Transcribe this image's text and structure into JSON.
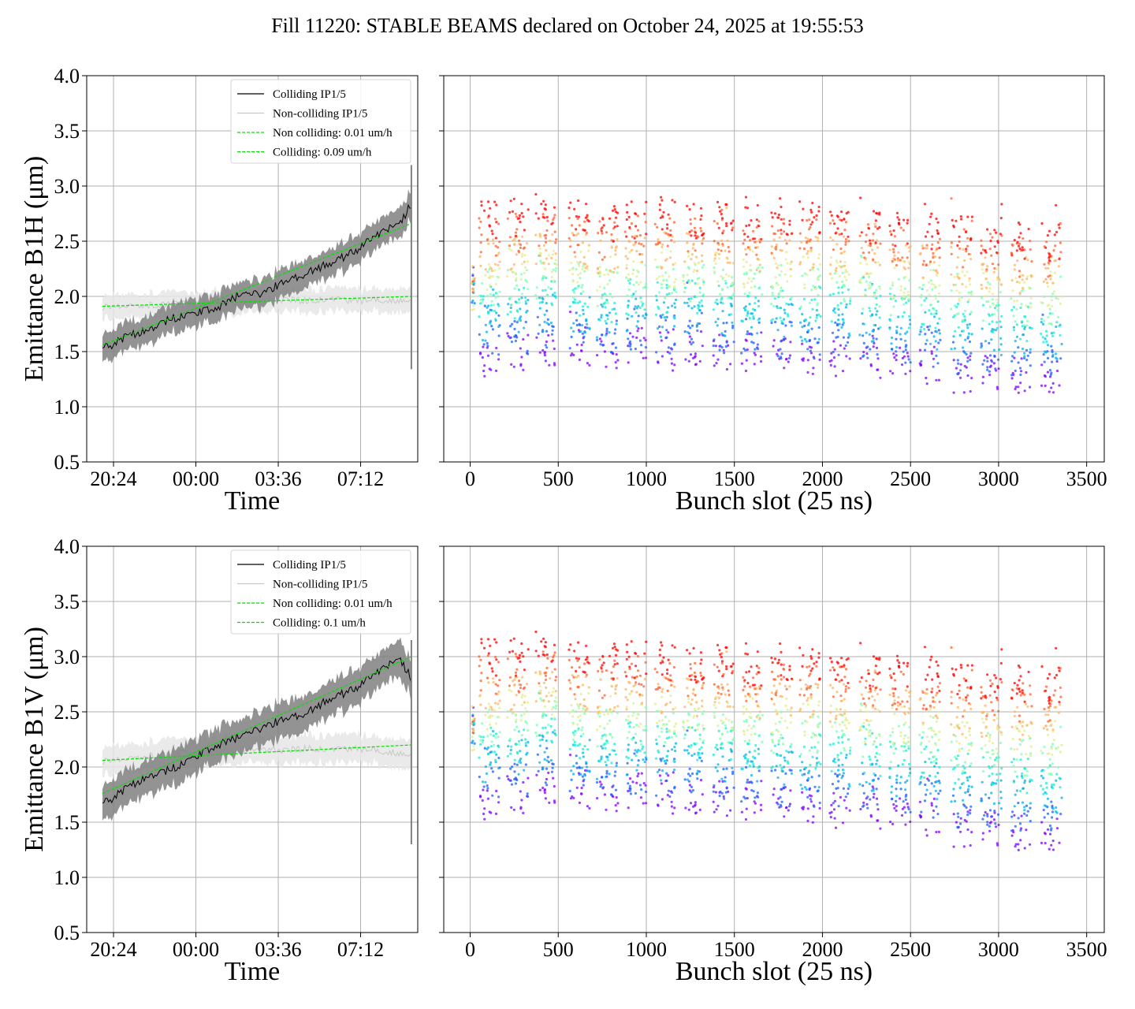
{
  "title": "Fill 11220: STABLE BEAMS declared on October 24, 2025 at 19:55:53",
  "colors": {
    "colliding": "#000000",
    "colliding_band": "#808080",
    "noncolliding": "#c8c8c8",
    "noncolliding_band": "#e6e6e6",
    "fit": "#00e000",
    "grid": "#b0b0b0"
  },
  "chart_data": [
    {
      "id": "b1h-time",
      "type": "line",
      "xlabel": "Time",
      "ylabel": "Emittance B1H (μm)",
      "ylim": [
        0.5,
        4.0
      ],
      "yticks": [
        "0.5",
        "1.0",
        "1.5",
        "2.0",
        "2.5",
        "3.0",
        "3.5",
        "4.0"
      ],
      "xticks": [
        "20:24",
        "00:00",
        "03:36",
        "07:12"
      ],
      "x_hours_since_1955": [
        0.0,
        1.0,
        2.0,
        3.0,
        4.0,
        5.0,
        6.0,
        7.0,
        8.0,
        9.0,
        10.0,
        11.0,
        12.0,
        13.0,
        13.5
      ],
      "series": [
        {
          "name": "Colliding IP1/5",
          "style": "solid",
          "values": [
            1.52,
            1.63,
            1.7,
            1.8,
            1.84,
            1.9,
            2.02,
            2.03,
            2.14,
            2.22,
            2.3,
            2.4,
            2.56,
            2.66,
            2.84
          ],
          "band": 0.12
        },
        {
          "name": "Non-colliding IP1/5",
          "style": "solid",
          "values": [
            1.9,
            1.92,
            1.92,
            1.93,
            1.93,
            1.95,
            1.94,
            1.96,
            1.97,
            1.96,
            1.98,
            1.96,
            1.97,
            1.96,
            1.96
          ],
          "band": 0.1
        },
        {
          "name": "Non colliding: 0.01 um/h",
          "style": "dashed",
          "fit": [
            1.91,
            2.0
          ]
        },
        {
          "name": "Colliding: 0.09 um/h",
          "style": "dashed",
          "fit": [
            1.56,
            2.66
          ]
        }
      ],
      "legend": "top-right"
    },
    {
      "id": "b1h-bunch",
      "type": "scatter",
      "xlabel": "Bunch slot (25 ns)",
      "ylim": [
        0.5,
        4.0
      ],
      "xlim": [
        -150,
        3600
      ],
      "xticks": [
        "0",
        "500",
        "1000",
        "1500",
        "2000",
        "2500",
        "3000",
        "3500"
      ],
      "xtick_values": [
        0,
        500,
        1000,
        1500,
        2000,
        2500,
        3000,
        3500
      ],
      "trains": [
        [
          50,
          170
        ],
        [
          210,
          330
        ],
        [
          370,
          490
        ],
        [
          560,
          680
        ],
        [
          720,
          840
        ],
        [
          880,
          1000
        ],
        [
          1050,
          1170
        ],
        [
          1210,
          1330
        ],
        [
          1380,
          1500
        ],
        [
          1540,
          1660
        ],
        [
          1710,
          1830
        ],
        [
          1870,
          1990
        ],
        [
          2040,
          2160
        ],
        [
          2210,
          2330
        ],
        [
          2380,
          2500
        ],
        [
          2550,
          2670
        ],
        [
          2730,
          2850
        ],
        [
          2900,
          3020
        ],
        [
          3070,
          3190
        ],
        [
          3240,
          3360
        ]
      ],
      "first_trains_low": [
        1.45,
        1.5,
        1.55,
        1.55,
        1.5,
        1.55,
        1.5,
        1.55,
        1.5,
        1.5,
        1.45,
        1.45,
        1.45,
        1.42,
        1.4,
        1.38,
        1.3,
        1.32,
        1.3,
        1.3
      ],
      "last_trains_high": [
        2.7,
        2.72,
        2.75,
        2.72,
        2.65,
        2.7,
        2.72,
        2.68,
        2.7,
        2.68,
        2.72,
        2.7,
        2.68,
        2.65,
        2.6,
        2.6,
        2.6,
        2.55,
        2.5,
        2.5
      ],
      "color_scale": "rainbow (time)"
    },
    {
      "id": "b1v-time",
      "type": "line",
      "xlabel": "Time",
      "ylabel": "Emittance B1V (μm)",
      "ylim": [
        0.5,
        4.0
      ],
      "yticks": [
        "0.5",
        "1.0",
        "1.5",
        "2.0",
        "2.5",
        "3.0",
        "3.5",
        "4.0"
      ],
      "xticks": [
        "20:24",
        "00:00",
        "03:36",
        "07:12"
      ],
      "x_hours_since_1955": [
        0.0,
        1.0,
        2.0,
        3.0,
        4.0,
        5.0,
        6.0,
        7.0,
        8.0,
        9.0,
        10.0,
        11.0,
        12.0,
        13.0,
        13.5
      ],
      "series": [
        {
          "name": "Colliding IP1/5",
          "style": "solid",
          "values": [
            1.66,
            1.8,
            1.92,
            1.98,
            2.08,
            2.2,
            2.28,
            2.36,
            2.44,
            2.5,
            2.62,
            2.7,
            2.86,
            2.98,
            2.8
          ],
          "band": 0.15
        },
        {
          "name": "Non-colliding IP1/5",
          "style": "solid",
          "values": [
            2.05,
            2.08,
            2.1,
            2.12,
            2.13,
            2.14,
            2.15,
            2.16,
            2.15,
            2.17,
            2.16,
            2.17,
            2.15,
            2.12,
            2.1
          ],
          "band": 0.12
        },
        {
          "name": "Non colliding: 0.01 um/h",
          "style": "dashed",
          "fit": [
            2.06,
            2.2
          ]
        },
        {
          "name": "Colliding: 0.1 um/h",
          "style": "dashed",
          "fit": [
            1.76,
            3.0
          ]
        }
      ],
      "legend": "top-right"
    },
    {
      "id": "b1v-bunch",
      "type": "scatter",
      "xlabel": "Bunch slot (25 ns)",
      "ylim": [
        0.5,
        4.0
      ],
      "xlim": [
        -150,
        3600
      ],
      "xticks": [
        "0",
        "500",
        "1000",
        "1500",
        "2000",
        "2500",
        "3000",
        "3500"
      ],
      "xtick_values": [
        0,
        500,
        1000,
        1500,
        2000,
        2500,
        3000,
        3500
      ],
      "trains": [
        [
          50,
          170
        ],
        [
          210,
          330
        ],
        [
          370,
          490
        ],
        [
          560,
          680
        ],
        [
          720,
          840
        ],
        [
          880,
          1000
        ],
        [
          1050,
          1170
        ],
        [
          1210,
          1330
        ],
        [
          1380,
          1500
        ],
        [
          1540,
          1660
        ],
        [
          1710,
          1830
        ],
        [
          1870,
          1990
        ],
        [
          2040,
          2160
        ],
        [
          2210,
          2330
        ],
        [
          2380,
          2500
        ],
        [
          2550,
          2670
        ],
        [
          2730,
          2850
        ],
        [
          2900,
          3020
        ],
        [
          3070,
          3190
        ],
        [
          3240,
          3360
        ]
      ],
      "first_trains_low": [
        1.7,
        1.75,
        1.85,
        1.8,
        1.75,
        1.78,
        1.75,
        1.75,
        1.72,
        1.7,
        1.65,
        1.65,
        1.62,
        1.6,
        1.58,
        1.55,
        1.45,
        1.45,
        1.42,
        1.42
      ],
      "last_trains_high": [
        3.0,
        3.0,
        3.05,
        2.98,
        2.95,
        2.98,
        2.95,
        2.92,
        2.95,
        2.9,
        2.95,
        2.92,
        2.9,
        2.88,
        2.85,
        2.85,
        2.8,
        2.78,
        2.75,
        2.75
      ],
      "color_scale": "rainbow (time)"
    }
  ]
}
